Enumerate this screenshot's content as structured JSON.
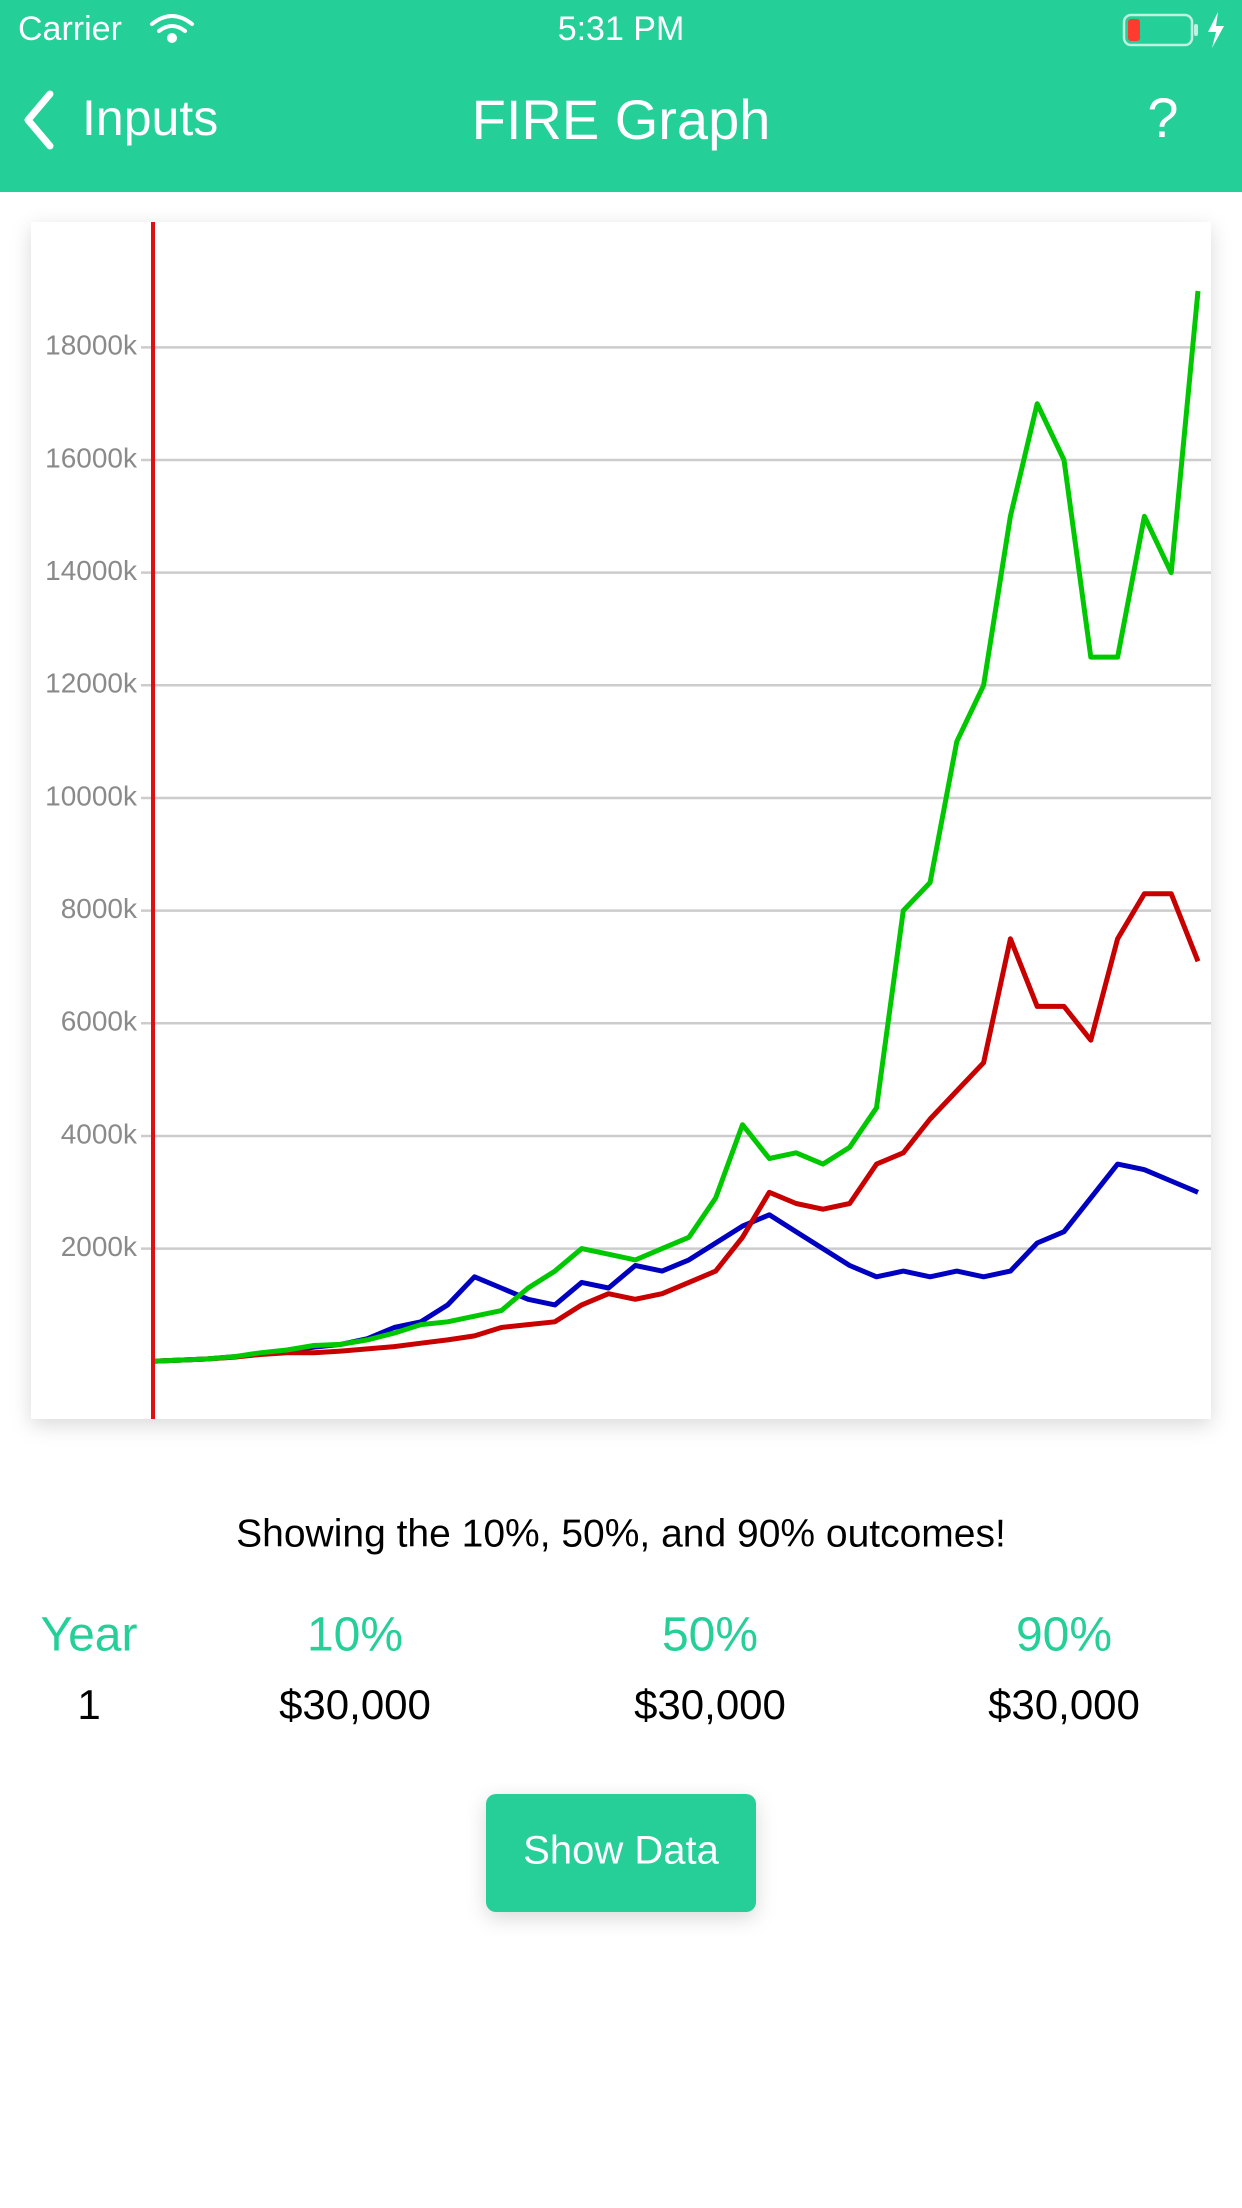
{
  "status_bar": {
    "carrier": "Carrier",
    "time": "5:31 PM"
  },
  "nav": {
    "back": "Inputs",
    "title": "FIRE Graph",
    "help": "?"
  },
  "chart_data": {
    "type": "line",
    "ylim": [
      -1025,
      20225
    ],
    "yticks": [
      {
        "value": 2000,
        "label": "2000k"
      },
      {
        "value": 4000,
        "label": "4000k"
      },
      {
        "value": 6000,
        "label": "6000k"
      },
      {
        "value": 8000,
        "label": "8000k"
      },
      {
        "value": 10000,
        "label": "10000k"
      },
      {
        "value": 12000,
        "label": "12000k"
      },
      {
        "value": 14000,
        "label": "14000k"
      },
      {
        "value": 16000,
        "label": "16000k"
      },
      {
        "value": 18000,
        "label": "18000k"
      }
    ],
    "grid": true,
    "series": [
      {
        "color": "#0000c0",
        "values": [
          0,
          20,
          40,
          80,
          130,
          180,
          250,
          300,
          400,
          600,
          700,
          1000,
          1500,
          1300,
          1100,
          1000,
          1400,
          1300,
          1700,
          1600,
          1800,
          2100,
          2400,
          2600,
          2300,
          2000,
          1700,
          1500,
          1600,
          1500,
          1600,
          1500,
          1600,
          2100,
          2300,
          2900,
          3500,
          3400,
          3200,
          3000
        ]
      },
      {
        "color": "#c80000",
        "values": [
          0,
          20,
          40,
          70,
          120,
          150,
          150,
          180,
          220,
          260,
          320,
          380,
          450,
          600,
          650,
          700,
          1000,
          1200,
          1100,
          1200,
          1400,
          1600,
          2200,
          3000,
          2800,
          2700,
          2800,
          3500,
          3700,
          4300,
          4800,
          5300,
          7500,
          6300,
          6300,
          5700,
          7500,
          8300,
          8300,
          7100
        ]
      },
      {
        "color": "#00c800",
        "values": [
          0,
          20,
          40,
          80,
          150,
          200,
          280,
          300,
          380,
          500,
          650,
          700,
          800,
          900,
          1300,
          1600,
          2000,
          1900,
          1800,
          2000,
          2200,
          2900,
          4200,
          3600,
          3700,
          3500,
          3800,
          4500,
          8000,
          8500,
          11000,
          12000,
          15000,
          17000,
          16000,
          12500,
          12500,
          15000,
          14000,
          19000
        ]
      }
    ]
  },
  "caption": "Showing the 10%, 50%, and 90% outcomes!",
  "table": {
    "headers": [
      "Year",
      "10%",
      "50%",
      "90%"
    ],
    "rows": [
      [
        "1",
        "$30,000",
        "$30,000",
        "$30,000"
      ]
    ]
  },
  "button": "Show Data"
}
